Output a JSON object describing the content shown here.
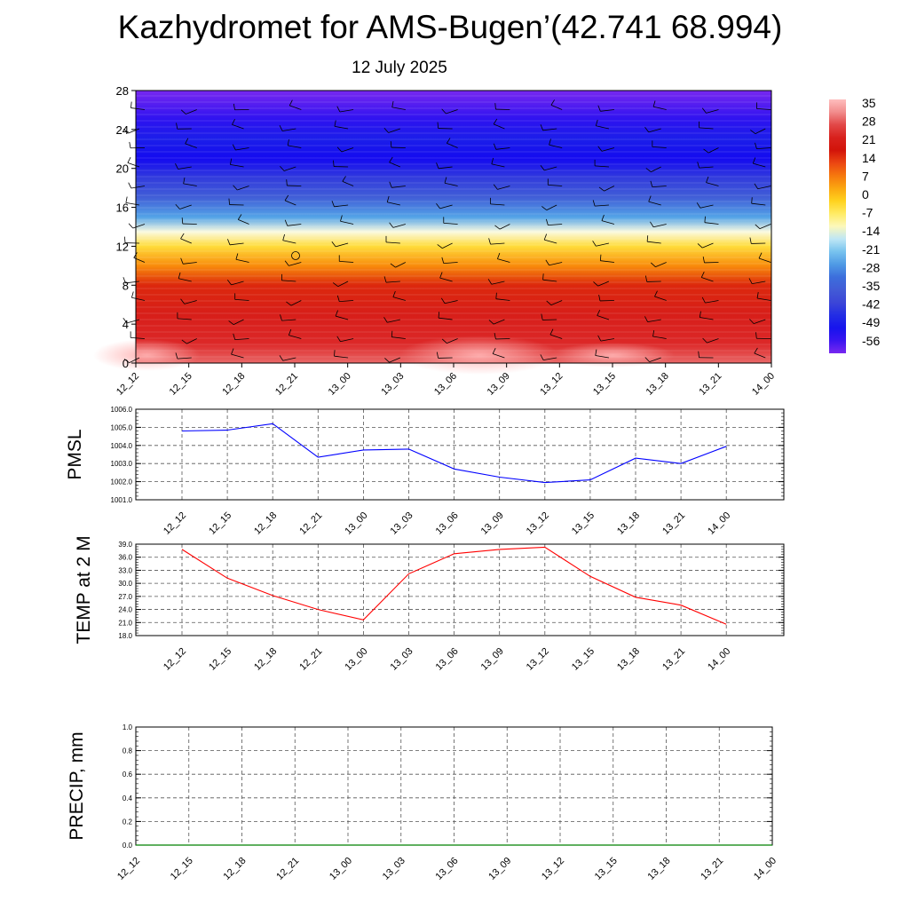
{
  "title": "Kazhydromet for AMS-Bugen’(42.741 68.994)",
  "subtitle": "12 July 2025",
  "chart_data": [
    {
      "type": "heatmap",
      "ylim": [
        0,
        28
      ],
      "yticks": [
        "0",
        "4",
        "8",
        "12",
        "16",
        "20",
        "24",
        "28"
      ],
      "x_ticks": [
        "12_12",
        "12_15",
        "12_18",
        "12_21",
        "13_00",
        "13_03",
        "13_06",
        "13_09",
        "13_12",
        "13_15",
        "13_18",
        "13_21",
        "14_00"
      ],
      "colorbar_labels": [
        "35",
        "28",
        "21",
        "14",
        "7",
        "0",
        "-7",
        "-14",
        "-21",
        "-28",
        "-35",
        "-42",
        "-49",
        "-56"
      ],
      "colorbar_range": [
        -60,
        40
      ],
      "value_profile": [
        {
          "y": 0,
          "v": 32
        },
        {
          "y": 2,
          "v": 28
        },
        {
          "y": 5,
          "v": 24
        },
        {
          "y": 8,
          "v": 18
        },
        {
          "y": 10,
          "v": 8
        },
        {
          "y": 12,
          "v": -2
        },
        {
          "y": 13.5,
          "v": -12
        },
        {
          "y": 15,
          "v": -24
        },
        {
          "y": 17,
          "v": -34
        },
        {
          "y": 19,
          "v": -42
        },
        {
          "y": 21,
          "v": -52
        },
        {
          "y": 23,
          "v": -48
        },
        {
          "y": 25,
          "v": -54
        },
        {
          "y": 28,
          "v": -60
        }
      ]
    },
    {
      "type": "line",
      "ylabel": "PMSL",
      "ylim": [
        1001.0,
        1006.0
      ],
      "yticks": [
        "1001.0",
        "1002.0",
        "1003.0",
        "1004.0",
        "1005.0",
        "1006.0"
      ],
      "categories": [
        "12_12",
        "12_15",
        "12_18",
        "12_21",
        "13_00",
        "13_03",
        "13_06",
        "13_09",
        "13_12",
        "13_15",
        "13_18",
        "13_21",
        "14_00"
      ],
      "series": [
        {
          "values": [
            1004.8,
            1004.85,
            1005.2,
            1003.35,
            1003.75,
            1003.8,
            1002.7,
            1002.25,
            1001.95,
            1002.1,
            1003.3,
            1003.0,
            1003.95
          ],
          "color": "#0000ff"
        }
      ]
    },
    {
      "type": "line",
      "ylabel": "TEMP at 2 M",
      "ylim": [
        18.0,
        39.0
      ],
      "yticks": [
        "18.0",
        "21.0",
        "24.0",
        "27.0",
        "30.0",
        "33.0",
        "36.0",
        "39.0"
      ],
      "categories": [
        "12_12",
        "12_15",
        "12_18",
        "12_21",
        "13_00",
        "13_03",
        "13_06",
        "13_09",
        "13_12",
        "13_15",
        "13_18",
        "13_21",
        "14_00"
      ],
      "series": [
        {
          "values": [
            37.8,
            31.2,
            27.2,
            24.0,
            21.6,
            32.2,
            36.8,
            37.8,
            38.3,
            31.6,
            26.8,
            25.0,
            20.6
          ],
          "color": "#ff0000"
        }
      ]
    },
    {
      "type": "line",
      "ylabel": "PRECIP, mm",
      "ylim": [
        0.0,
        1.0
      ],
      "yticks": [
        "0.0",
        "0.2",
        "0.4",
        "0.6",
        "0.8",
        "1.0"
      ],
      "categories": [
        "12_12",
        "12_15",
        "12_18",
        "12_21",
        "13_00",
        "13_03",
        "13_06",
        "13_09",
        "13_12",
        "13_15",
        "13_18",
        "13_21",
        "14_00"
      ],
      "series": [
        {
          "values": [
            0,
            0,
            0,
            0,
            0,
            0,
            0,
            0,
            0,
            0,
            0,
            0,
            0
          ],
          "color": "#008000"
        }
      ]
    }
  ]
}
